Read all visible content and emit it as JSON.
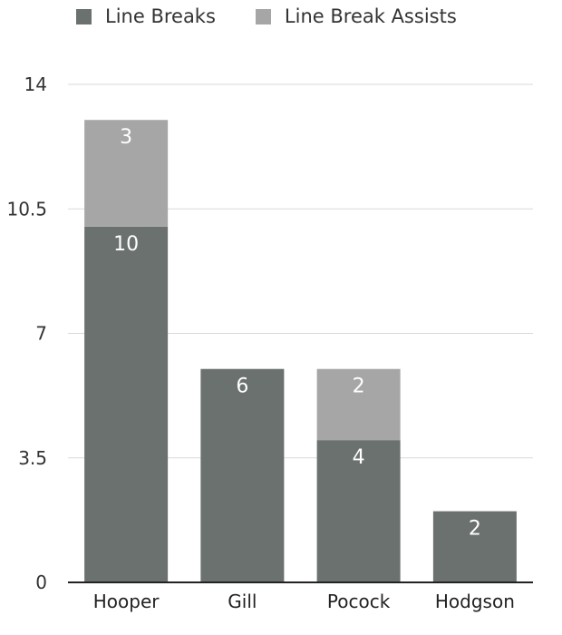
{
  "chart_data": {
    "type": "bar",
    "stacked": true,
    "categories": [
      "Hooper",
      "Gill",
      "Pocock",
      "Hodgson"
    ],
    "series": [
      {
        "name": "Line Breaks",
        "values": [
          10,
          6,
          4,
          2
        ],
        "color": "#6b716e"
      },
      {
        "name": "Line Break Assists",
        "values": [
          3,
          0,
          2,
          0
        ],
        "color": "#a6a6a6"
      }
    ],
    "yticks": [
      "0",
      "3.5",
      "7",
      "10.5",
      "14"
    ],
    "ylim": [
      0,
      14
    ],
    "grid": true,
    "legend_position": "top"
  }
}
